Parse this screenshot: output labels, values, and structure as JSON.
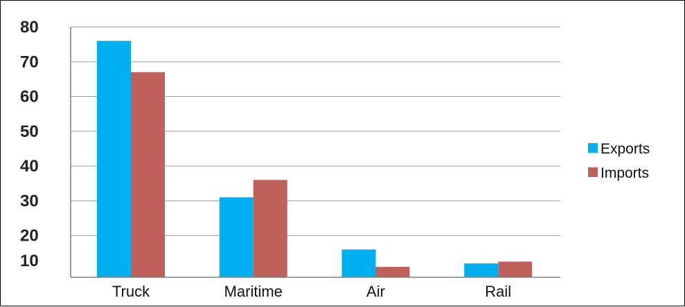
{
  "chart_data": {
    "type": "bar",
    "categories": [
      "Truck",
      "Maritime",
      "Air",
      "Rail"
    ],
    "series": [
      {
        "name": "Exports",
        "color": "#00b0f0",
        "values": [
          76,
          31,
          16,
          12
        ]
      },
      {
        "name": "Imports",
        "color": "#c0605a",
        "values": [
          67,
          36,
          11,
          12.5
        ]
      }
    ],
    "yticks": [
      10,
      20,
      30,
      40,
      50,
      60,
      70,
      80
    ],
    "ylim": [
      8,
      80
    ],
    "grid": true,
    "legend_position": "right",
    "title": "",
    "xlabel": "",
    "ylabel": ""
  }
}
